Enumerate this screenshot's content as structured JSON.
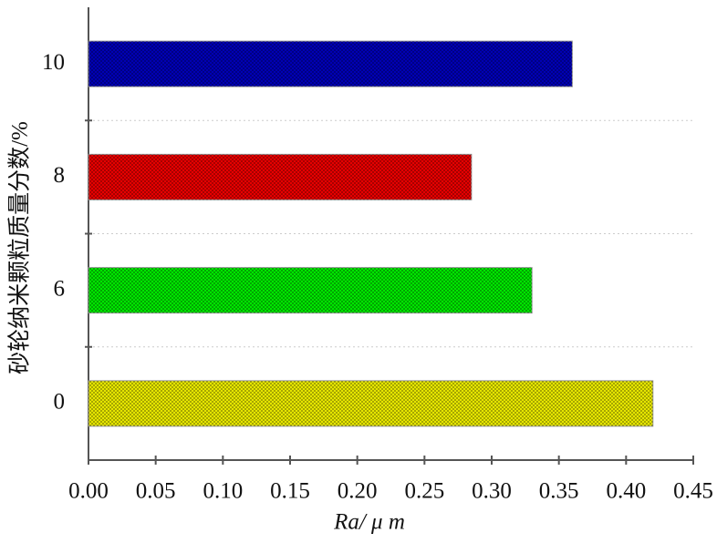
{
  "chart_data": {
    "type": "hbar",
    "xlabel": "Ra/ μ m",
    "ylabel": "砂轮纳米颗粒质量分数/%",
    "categories": [
      "0",
      "6",
      "8",
      "10"
    ],
    "values": [
      0.42,
      0.33,
      0.285,
      0.36
    ],
    "colors": [
      "#e6e600",
      "#00e600",
      "#e60000",
      "#0000b4"
    ],
    "xlim": [
      0,
      0.45
    ],
    "xticks": [
      {
        "value": 0,
        "label": "0.00"
      },
      {
        "value": 0.05,
        "label": "0.05"
      },
      {
        "value": 0.1,
        "label": "0.10"
      },
      {
        "value": 0.15,
        "label": "0.15"
      },
      {
        "value": 0.2,
        "label": "0.20"
      },
      {
        "value": 0.25,
        "label": "0.25"
      },
      {
        "value": 0.3,
        "label": "0.30"
      },
      {
        "value": 0.35,
        "label": "0.35"
      },
      {
        "value": 0.4,
        "label": "0.40"
      },
      {
        "value": 0.45,
        "label": "0.45"
      }
    ],
    "grid": true
  }
}
